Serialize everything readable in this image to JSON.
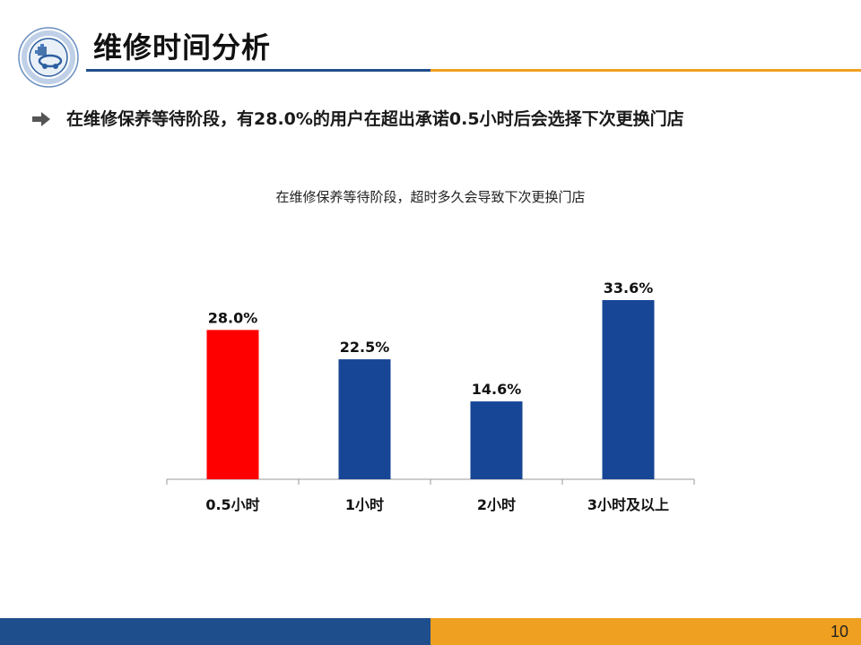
{
  "slide": {
    "title": "维修时间分析",
    "bullet": "在维修保养等待阶段，有28.0%的用户在超出承诺0.5小时后会选择下次更换门店",
    "page_number": "10"
  },
  "colors": {
    "brand_blue": "#1f4e8c",
    "brand_orange": "#f0a020",
    "highlight_red": "#ff0000",
    "bar_blue": "#174696"
  },
  "chart_data": {
    "type": "bar",
    "title": "在维修保养等待阶段，超时多久会导致下次更换门店",
    "categories": [
      "0.5小时",
      "1小时",
      "2小时",
      "3小时及以上"
    ],
    "values": [
      28.0,
      22.5,
      14.6,
      33.6
    ],
    "data_labels": [
      "28.0%",
      "22.5%",
      "14.6%",
      "33.6%"
    ],
    "bar_colors": [
      "#ff0000",
      "#174696",
      "#174696",
      "#174696"
    ],
    "xlabel": "",
    "ylabel": "",
    "ylim": [
      0,
      35
    ],
    "grid": false,
    "legend": "none"
  }
}
